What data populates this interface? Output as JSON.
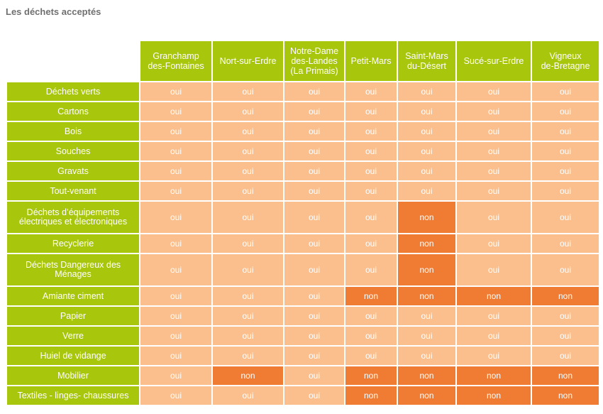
{
  "title": "Les déchets acceptés",
  "colors": {
    "header_green": "#a8c60b",
    "oui_bg": "#fbbf8d",
    "non_bg": "#f07c34",
    "title_gray": "#707070"
  },
  "columns": [
    [
      "Granchamp",
      "des-Fontaines"
    ],
    [
      "Nort-sur-Erdre"
    ],
    [
      "Notre-Dame",
      "des-Landes",
      "(La Primais)"
    ],
    [
      "Petit-Mars"
    ],
    [
      "Saint-Mars",
      "du-Désert"
    ],
    [
      "Sucé-sur-Erdre"
    ],
    [
      "Vigneux",
      "de-Bretagne"
    ]
  ],
  "rows": [
    {
      "label": [
        "Déchets verts"
      ],
      "values": [
        "oui",
        "oui",
        "oui",
        "oui",
        "oui",
        "oui",
        "oui"
      ]
    },
    {
      "label": [
        "Cartons"
      ],
      "values": [
        "oui",
        "oui",
        "oui",
        "oui",
        "oui",
        "oui",
        "oui"
      ]
    },
    {
      "label": [
        "Bois"
      ],
      "values": [
        "oui",
        "oui",
        "oui",
        "oui",
        "oui",
        "oui",
        "oui"
      ]
    },
    {
      "label": [
        "Souches"
      ],
      "values": [
        "oui",
        "oui",
        "oui",
        "oui",
        "oui",
        "oui",
        "oui"
      ]
    },
    {
      "label": [
        "Gravats"
      ],
      "values": [
        "oui",
        "oui",
        "oui",
        "oui",
        "oui",
        "oui",
        "oui"
      ]
    },
    {
      "label": [
        "Tout-venant"
      ],
      "values": [
        "oui",
        "oui",
        "oui",
        "oui",
        "oui",
        "oui",
        "oui"
      ]
    },
    {
      "label": [
        "Déchets d’équipements",
        "électriques et électroniques"
      ],
      "values": [
        "oui",
        "oui",
        "oui",
        "oui",
        "non",
        "oui",
        "oui"
      ]
    },
    {
      "label": [
        "Recyclerie"
      ],
      "values": [
        "oui",
        "oui",
        "oui",
        "oui",
        "non",
        "oui",
        "oui"
      ]
    },
    {
      "label": [
        "Déchets Dangereux des",
        "Ménages"
      ],
      "values": [
        "oui",
        "oui",
        "oui",
        "oui",
        "non",
        "oui",
        "oui"
      ]
    },
    {
      "label": [
        "Amiante ciment"
      ],
      "values": [
        "oui",
        "oui",
        "oui",
        "non",
        "non",
        "non",
        "non"
      ]
    },
    {
      "label": [
        "Papier"
      ],
      "values": [
        "oui",
        "oui",
        "oui",
        "oui",
        "oui",
        "oui",
        "oui"
      ]
    },
    {
      "label": [
        "Verre"
      ],
      "values": [
        "oui",
        "oui",
        "oui",
        "oui",
        "oui",
        "oui",
        "oui"
      ]
    },
    {
      "label": [
        "Huiel de vidange"
      ],
      "values": [
        "oui",
        "oui",
        "oui",
        "oui",
        "oui",
        "oui",
        "oui"
      ]
    },
    {
      "label": [
        "Mobilier"
      ],
      "values": [
        "oui",
        "non",
        "oui",
        "non",
        "non",
        "non",
        "non"
      ]
    },
    {
      "label": [
        "Textiles - linges- chaussures"
      ],
      "values": [
        "oui",
        "oui",
        "oui",
        "non",
        "non",
        "non",
        "non"
      ]
    }
  ]
}
